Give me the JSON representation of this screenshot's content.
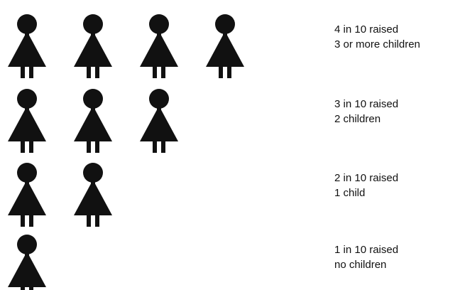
{
  "chart_data": {
    "type": "pictogram",
    "categories": [
      [
        "4 in 10 raised",
        "3 or more children"
      ],
      [
        "3 in 10 raised",
        "2 children"
      ],
      [
        "2 in 10 raised",
        "1 child"
      ],
      [
        "1 in 10 raised",
        "no children"
      ]
    ],
    "values": [
      4,
      3,
      2,
      1
    ],
    "color": "#111111"
  }
}
